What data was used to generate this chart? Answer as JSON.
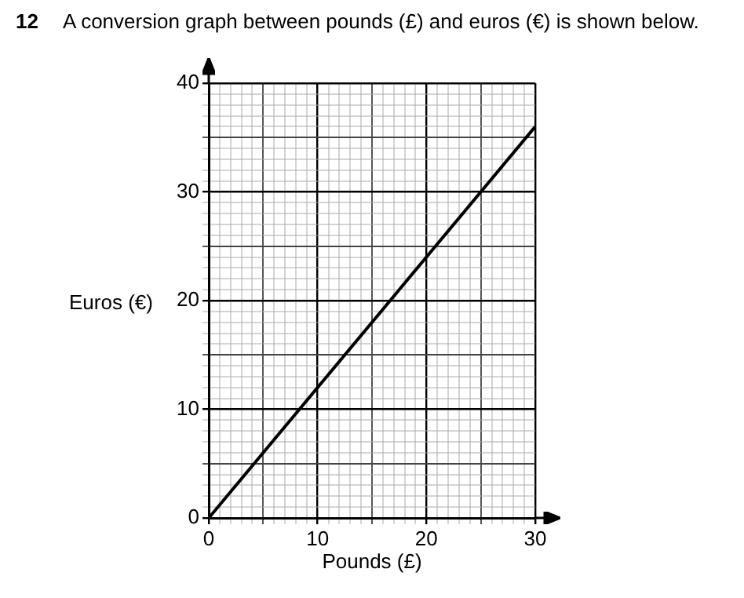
{
  "chart_data": {
    "type": "line",
    "title": "A conversion graph between pounds (£) and euros (€) is shown below.",
    "annotations": [
      "12"
    ],
    "xlabel": "Pounds (£)",
    "ylabel": "Euros (€)",
    "x": [
      0,
      30
    ],
    "values": [
      0,
      36
    ],
    "color": "#000000",
    "xlim": [
      0,
      30
    ],
    "ylim": [
      0,
      40
    ],
    "xticks": [
      0,
      {
        "value": 1,
        "label": null
      },
      {
        "value": 2,
        "label": null
      },
      {
        "value": 3,
        "label": null
      },
      {
        "value": 4,
        "label": null
      },
      {
        "value": 5,
        "label": null
      },
      {
        "value": 6,
        "label": null
      },
      {
        "value": 7,
        "label": null
      },
      {
        "value": 8,
        "label": null
      },
      {
        "value": 9,
        "label": null
      },
      10,
      {
        "value": 11,
        "label": null
      },
      {
        "value": 12,
        "label": null
      },
      {
        "value": 13,
        "label": null
      },
      {
        "value": 14,
        "label": null
      },
      {
        "value": 15,
        "label": null
      },
      {
        "value": 16,
        "label": null
      },
      {
        "value": 17,
        "label": null
      },
      {
        "value": 18,
        "label": null
      },
      {
        "value": 19,
        "label": null
      },
      20,
      {
        "value": 21,
        "label": null
      },
      {
        "value": 22,
        "label": null
      },
      {
        "value": 23,
        "label": null
      },
      {
        "value": 24,
        "label": null
      },
      {
        "value": 25,
        "label": null
      },
      {
        "value": 26,
        "label": null
      },
      {
        "value": 27,
        "label": null
      },
      {
        "value": 28,
        "label": null
      },
      {
        "value": 29,
        "label": null
      },
      30
    ],
    "yticks": [
      0,
      {
        "value": 1,
        "label": null
      },
      {
        "value": 2,
        "label": null
      },
      {
        "value": 3,
        "label": null
      },
      {
        "value": 4,
        "label": null
      },
      {
        "value": 5,
        "label": null
      },
      {
        "value": 6,
        "label": null
      },
      {
        "value": 7,
        "label": null
      },
      {
        "value": 8,
        "label": null
      },
      {
        "value": 9,
        "label": null
      },
      10,
      {
        "value": 11,
        "label": null
      },
      {
        "value": 12,
        "label": null
      },
      {
        "value": 13,
        "label": null
      },
      {
        "value": 14,
        "label": null
      },
      {
        "value": 15,
        "label": null
      },
      {
        "value": 16,
        "label": null
      },
      {
        "value": 17,
        "label": null
      },
      {
        "value": 18,
        "label": null
      },
      {
        "value": 19,
        "label": null
      },
      20,
      {
        "value": 21,
        "label": null
      },
      {
        "value": 22,
        "label": null
      },
      {
        "value": 23,
        "label": null
      },
      {
        "value": 24,
        "label": null
      },
      {
        "value": 25,
        "label": null
      },
      {
        "value": 26,
        "label": null
      },
      {
        "value": 27,
        "label": null
      },
      {
        "value": 28,
        "label": null
      },
      {
        "value": 29,
        "label": null
      },
      30,
      {
        "value": 31,
        "label": null
      },
      {
        "value": 32,
        "label": null
      },
      {
        "value": 33,
        "label": null
      },
      {
        "value": 34,
        "label": null
      },
      {
        "value": 35,
        "label": null
      },
      {
        "value": 36,
        "label": null
      },
      {
        "value": 37,
        "label": null
      },
      {
        "value": 38,
        "label": null
      },
      {
        "value": 39,
        "label": null
      },
      40
    ],
    "grid": true,
    "marker": "none",
    "line_style": "solid"
  }
}
